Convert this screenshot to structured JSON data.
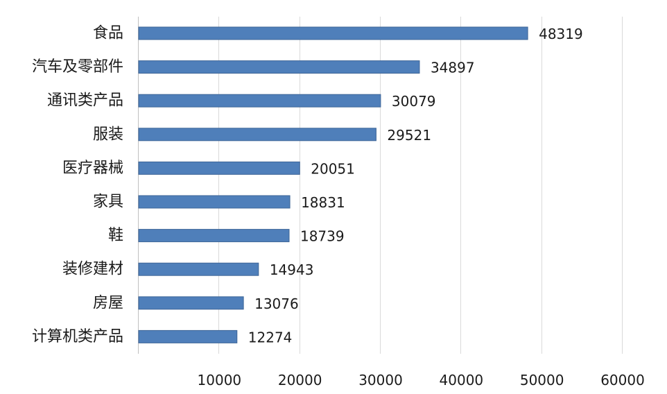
{
  "chart_data": {
    "type": "bar",
    "orientation": "horizontal",
    "categories": [
      "食品",
      "汽车及零部件",
      "通讯类产品",
      "服装",
      "医疗器械",
      "家具",
      "鞋",
      "装修建材",
      "房屋",
      "计算机类产品"
    ],
    "values": [
      48319,
      34897,
      30079,
      29521,
      20051,
      18831,
      18739,
      14943,
      13076,
      12274
    ],
    "value_labels": [
      "48319",
      "34897",
      "30079",
      "29521",
      "20051",
      "18831",
      "18739",
      "14943",
      "13076",
      "12274"
    ],
    "xlim": [
      0,
      60000
    ],
    "x_ticks": [
      10000,
      20000,
      30000,
      40000,
      50000,
      60000
    ],
    "x_tick_labels": [
      "10000",
      "20000",
      "30000",
      "40000",
      "50000",
      "60000"
    ],
    "grid": "vertical",
    "legend": "none",
    "bar_color": "#4f7fba",
    "bar_edge_color": "#3d6597"
  }
}
